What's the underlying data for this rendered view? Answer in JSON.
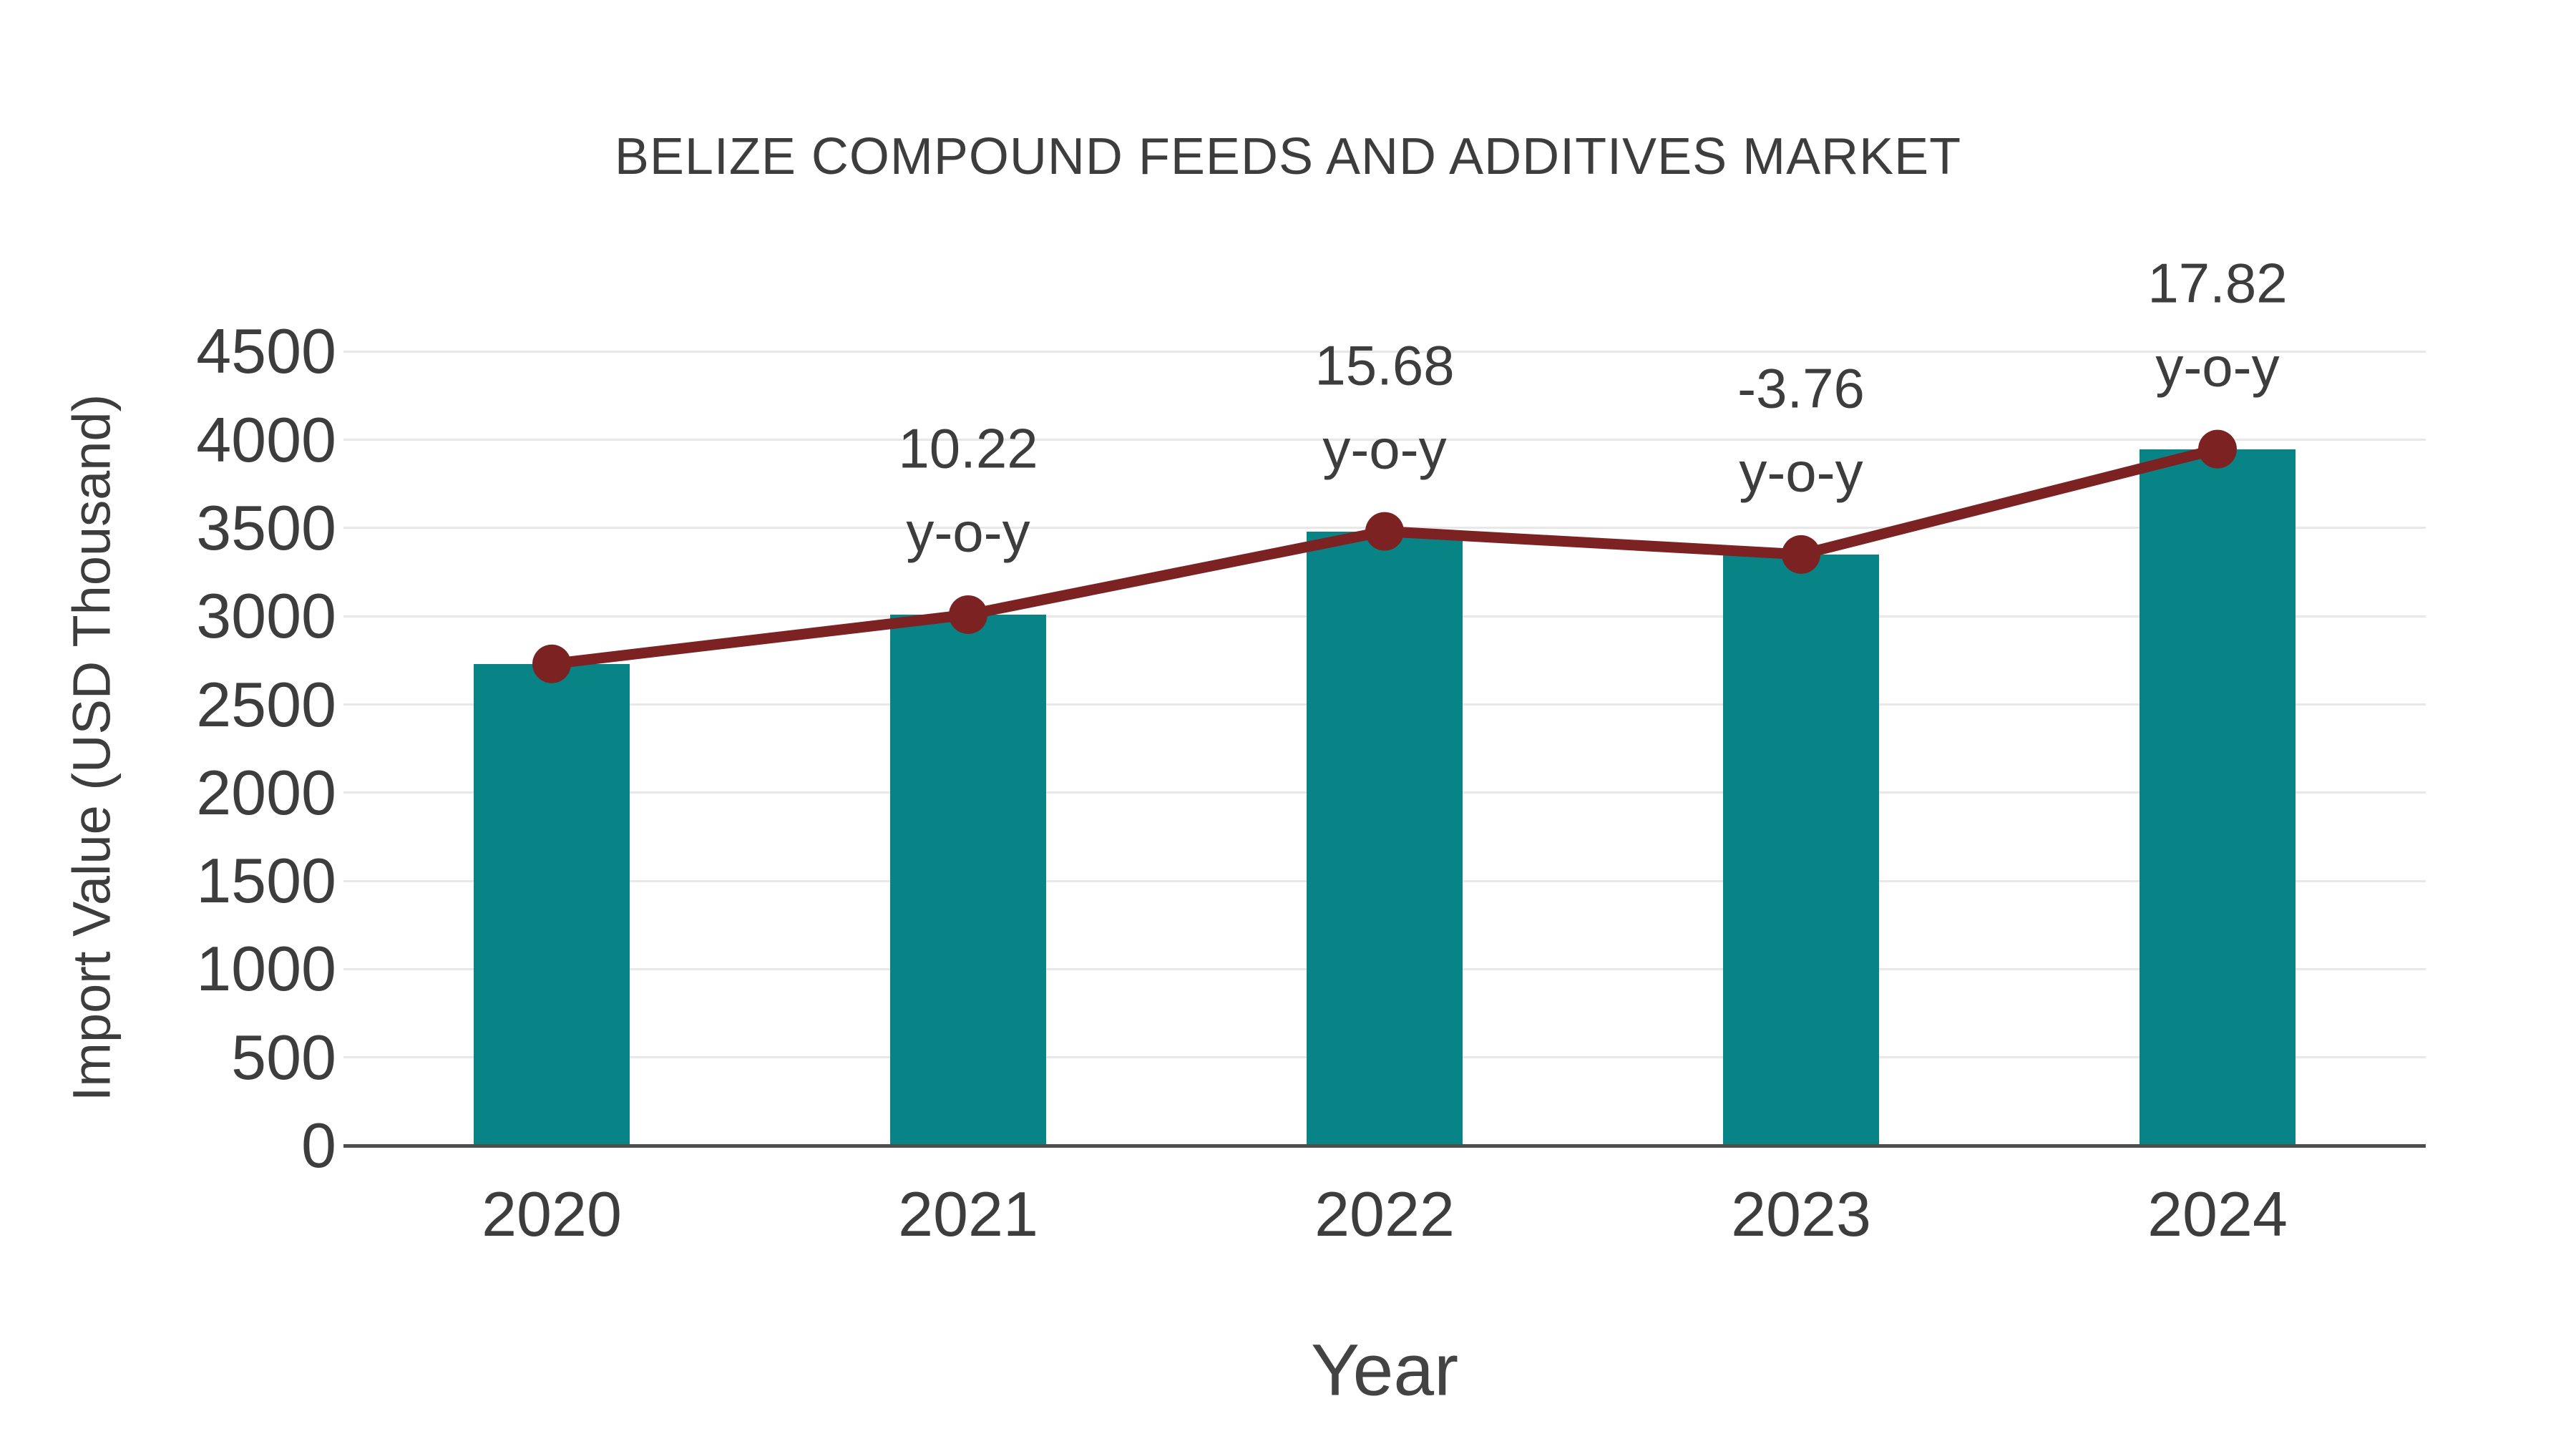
{
  "title": "BELIZE COMPOUND FEEDS AND ADDITIVES MARKET",
  "colors": {
    "bar": "#098486",
    "line": "#7c2222",
    "text": "#3d3d3d",
    "gridline": "#e8e8e8",
    "axis_line": "#4d4d4d"
  },
  "chart_data": {
    "type": "bar",
    "title": "BELIZE COMPOUND FEEDS AND ADDITIVES MARKET",
    "categories": [
      "2020",
      "2021",
      "2022",
      "2023",
      "2024"
    ],
    "series": [
      {
        "name": "Import Value",
        "type": "bar",
        "color": "#098486",
        "values": [
          2730,
          3009,
          3481,
          3350,
          3947
        ]
      },
      {
        "name": "Import Value trend",
        "type": "line",
        "color": "#7c2222",
        "values": [
          2730,
          3009,
          3481,
          3350,
          3947
        ]
      }
    ],
    "annotations": [
      {
        "category": "2021",
        "value": "10.22",
        "suffix": "y-o-y"
      },
      {
        "category": "2022",
        "value": "15.68",
        "suffix": "y-o-y"
      },
      {
        "category": "2023",
        "value": "-3.76",
        "suffix": "y-o-y"
      },
      {
        "category": "2024",
        "value": "17.82",
        "suffix": "y-o-y"
      }
    ],
    "xlabel": "Year",
    "ylabel": "Import Value (USD Thousand)",
    "ylim": [
      0,
      4500
    ],
    "yticks": [
      0,
      500,
      1000,
      1500,
      2000,
      2500,
      3000,
      3500,
      4000,
      4500
    ],
    "grid": "horizontal",
    "legend": "none"
  }
}
